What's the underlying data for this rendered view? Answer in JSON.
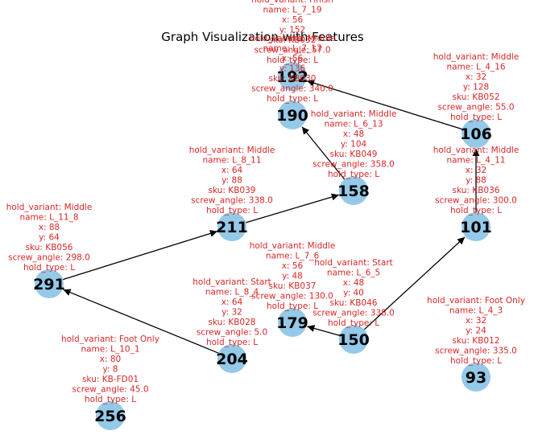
{
  "title": "Graph Visualization with Features",
  "colors": {
    "node_fill": "#94c9e8",
    "edge": "#000000",
    "attribute_text": "#d62728"
  },
  "graph": {
    "nodes": [
      {
        "id": "192",
        "lines": [
          "hold_variant: Finish",
          "name: L_7_19",
          "x: 56",
          "y: 152",
          "sku: KB032",
          "screw_angle: 57.0",
          "hold_type: L"
        ]
      },
      {
        "id": "190",
        "lines": [
          "hold_variant: Middle",
          "name: L_7_17",
          "x: 56",
          "y: 136",
          "sku: KB030",
          "screw_angle: 340.0",
          "hold_type: L"
        ]
      },
      {
        "id": "106",
        "lines": [
          "hold_variant: Middle",
          "name: L_4_16",
          "x: 32",
          "y: 128",
          "sku: KB052",
          "screw_angle: 55.0",
          "hold_type: L"
        ]
      },
      {
        "id": "158",
        "lines": [
          "hold_variant: Middle",
          "name: L_6_13",
          "x: 48",
          "y: 104",
          "sku: KB049",
          "screw_angle: 358.0",
          "hold_type: L"
        ]
      },
      {
        "id": "211",
        "lines": [
          "hold_variant: Middle",
          "name: L_8_11",
          "x: 64",
          "y: 88",
          "sku: KB039",
          "screw_angle: 338.0",
          "hold_type: L"
        ]
      },
      {
        "id": "101",
        "lines": [
          "hold_variant: Middle",
          "name: L_4_11",
          "x: 32",
          "y: 88",
          "sku: KB036",
          "screw_angle: 300.0",
          "hold_type: L"
        ]
      },
      {
        "id": "291",
        "lines": [
          "hold_variant: Middle",
          "name: L_11_8",
          "x: 88",
          "y: 64",
          "sku: KB056",
          "screw_angle: 298.0",
          "hold_type: L"
        ]
      },
      {
        "id": "179",
        "lines": [
          "hold_variant: Middle",
          "name: L_7_6",
          "x: 56",
          "y: 48",
          "sku: KB037",
          "screw_angle: 130.0",
          "hold_type: L"
        ]
      },
      {
        "id": "150",
        "lines": [
          "hold_variant: Start",
          "name: L_6_5",
          "x: 48",
          "y: 40",
          "sku: KB046",
          "screw_angle: 338.0",
          "hold_type: L"
        ]
      },
      {
        "id": "204",
        "lines": [
          "hold_variant: Start",
          "name: L_8_4",
          "x: 64",
          "y: 32",
          "sku: KB028",
          "screw_angle: 5.0",
          "hold_type: L"
        ]
      },
      {
        "id": "93",
        "lines": [
          "hold_variant: Foot Only",
          "name: L_4_3",
          "x: 32",
          "y: 24",
          "sku: KB012",
          "screw_angle: 335.0",
          "hold_type: L"
        ]
      },
      {
        "id": "256",
        "lines": [
          "hold_variant: Foot Only",
          "name: L_10_1",
          "x: 80",
          "y: 8",
          "sku: KB-FD01",
          "screw_angle: 45.0",
          "hold_type: L"
        ]
      }
    ],
    "edges": [
      {
        "source": "204",
        "target": "291"
      },
      {
        "source": "291",
        "target": "211"
      },
      {
        "source": "211",
        "target": "158"
      },
      {
        "source": "158",
        "target": "190"
      },
      {
        "source": "150",
        "target": "179"
      },
      {
        "source": "150",
        "target": "101"
      },
      {
        "source": "101",
        "target": "106"
      },
      {
        "source": "106",
        "target": "192"
      }
    ]
  }
}
